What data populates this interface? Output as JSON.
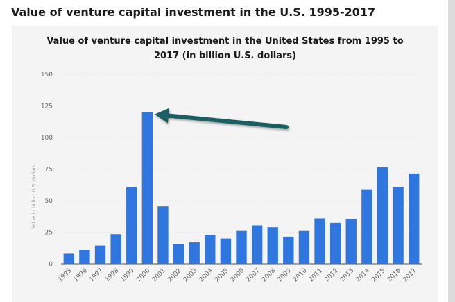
{
  "page": {
    "heading": "Value of venture capital investment in the U.S. 1995-2017"
  },
  "colors": {
    "bar": "#2f77de",
    "arrow": "#1d5f63",
    "grid": "#e2e2e2",
    "card_bg": "#f4f4f4"
  },
  "chart_data": {
    "type": "bar",
    "title_line1": "Value of venture capital investment in the United States from 1995 to",
    "title_line2": "2017 (in billion U.S. dollars)",
    "xlabel": "",
    "ylabel": "Value in billion U.S. dollars",
    "ylim": [
      0,
      150
    ],
    "yticks": [
      0,
      25,
      50,
      75,
      100,
      125,
      150
    ],
    "grid": true,
    "categories": [
      "1995",
      "1996",
      "1997",
      "1998",
      "1999",
      "2000",
      "2001",
      "2002",
      "2003",
      "2004",
      "2005",
      "2006",
      "2007",
      "2008",
      "2009",
      "2010",
      "2011",
      "2012",
      "2013",
      "2014",
      "2015",
      "2016",
      "2017"
    ],
    "values": [
      8,
      11,
      14.5,
      23.5,
      61,
      120,
      45.5,
      15.5,
      17,
      23,
      20,
      26,
      30.5,
      29,
      21.5,
      26,
      36,
      32.5,
      35.5,
      59,
      76.5,
      61,
      71.5
    ],
    "annotation": {
      "type": "arrow",
      "points_to": "2000"
    }
  }
}
